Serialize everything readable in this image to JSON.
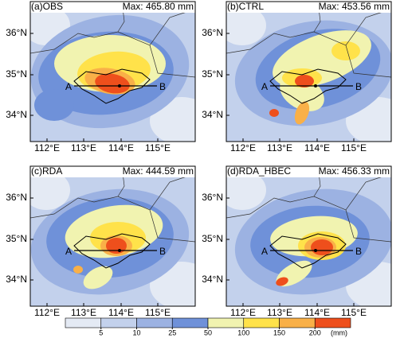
{
  "panels": [
    {
      "label": "(a)OBS",
      "max": "Max: 465.80 mm"
    },
    {
      "label": "(b)CTRL",
      "max": "Max: 453.56 mm"
    },
    {
      "label": "(c)RDA",
      "max": "Max: 444.59 mm"
    },
    {
      "label": "(d)RDA_HBEC",
      "max": "Max: 456.33 mm"
    }
  ],
  "lat_labels": [
    "36°N",
    "35°N",
    "34°N"
  ],
  "lon_labels": [
    "112°E",
    "113°E",
    "114°E",
    "115°E"
  ],
  "point_a": "A",
  "point_b": "B",
  "colorbar": {
    "ticks": [
      5,
      10,
      25,
      50,
      100,
      150,
      200
    ],
    "unit": "(mm)",
    "colors": [
      "#e4eaf4",
      "#c3d1ec",
      "#9cb2e2",
      "#6f91d9",
      "#f1f3b0",
      "#ffe24a",
      "#f9b048",
      "#ee4f1c"
    ]
  }
}
